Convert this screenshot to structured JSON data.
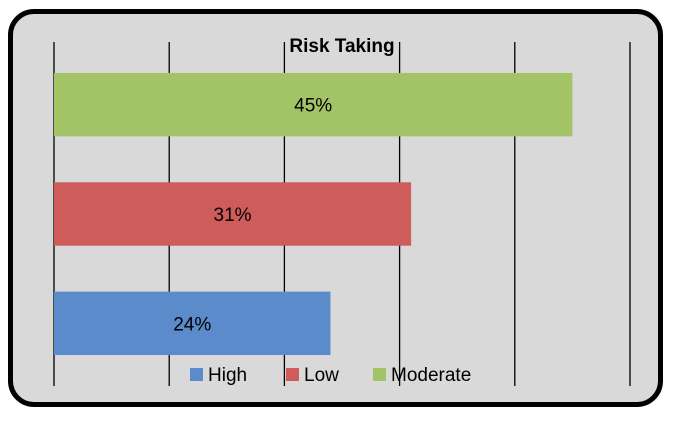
{
  "chart_data": {
    "type": "bar",
    "orientation": "horizontal",
    "title": "Risk Taking",
    "categories": [
      "High",
      "Low",
      "Moderate"
    ],
    "values": [
      24,
      31,
      45
    ],
    "value_labels": [
      "24%",
      "31%",
      "45%"
    ],
    "unit": "%",
    "colors": [
      "#5b8bcb",
      "#cd5c5a",
      "#a3c466"
    ],
    "xlim": [
      0,
      50
    ],
    "grid": true,
    "legend": {
      "position": "bottom",
      "entries": [
        "High",
        "Low",
        "Moderate"
      ]
    },
    "background": "#d9d9d9",
    "border_color": "#000000"
  }
}
